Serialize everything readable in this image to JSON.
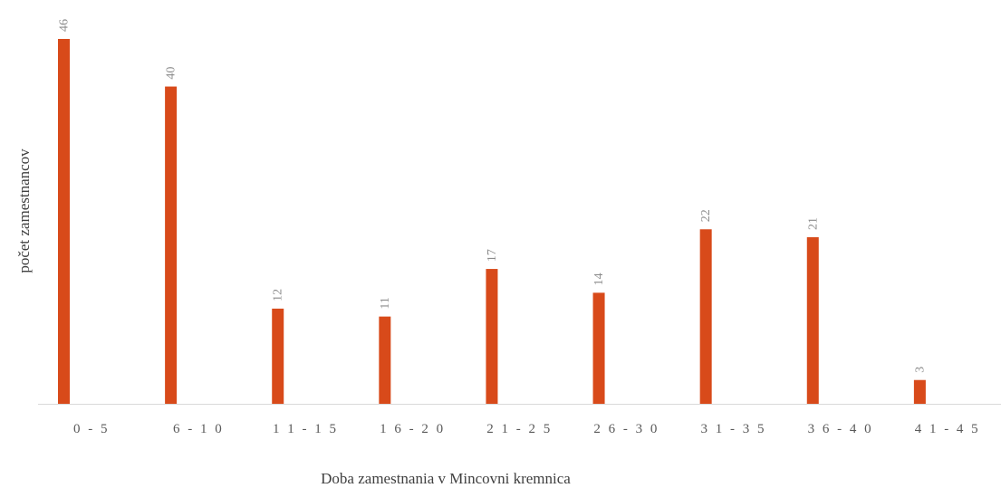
{
  "chart_data": {
    "type": "bar",
    "xlabel": "Doba zamestnania v Mincovni kremnica",
    "ylabel": "počet zamestnancov",
    "categories": [
      "0-5",
      "6-10",
      "11-15",
      "16-20",
      "21-25",
      "26-30",
      "31-35",
      "36-40",
      "41-45"
    ],
    "values": [
      46,
      40,
      12,
      11,
      17,
      14,
      22,
      21,
      3
    ],
    "ylim": [
      0,
      46
    ],
    "grid": false,
    "legend": "none",
    "data_labels": true,
    "bar_color": "#D84A1A",
    "axis_color": "#D9D9D9"
  }
}
